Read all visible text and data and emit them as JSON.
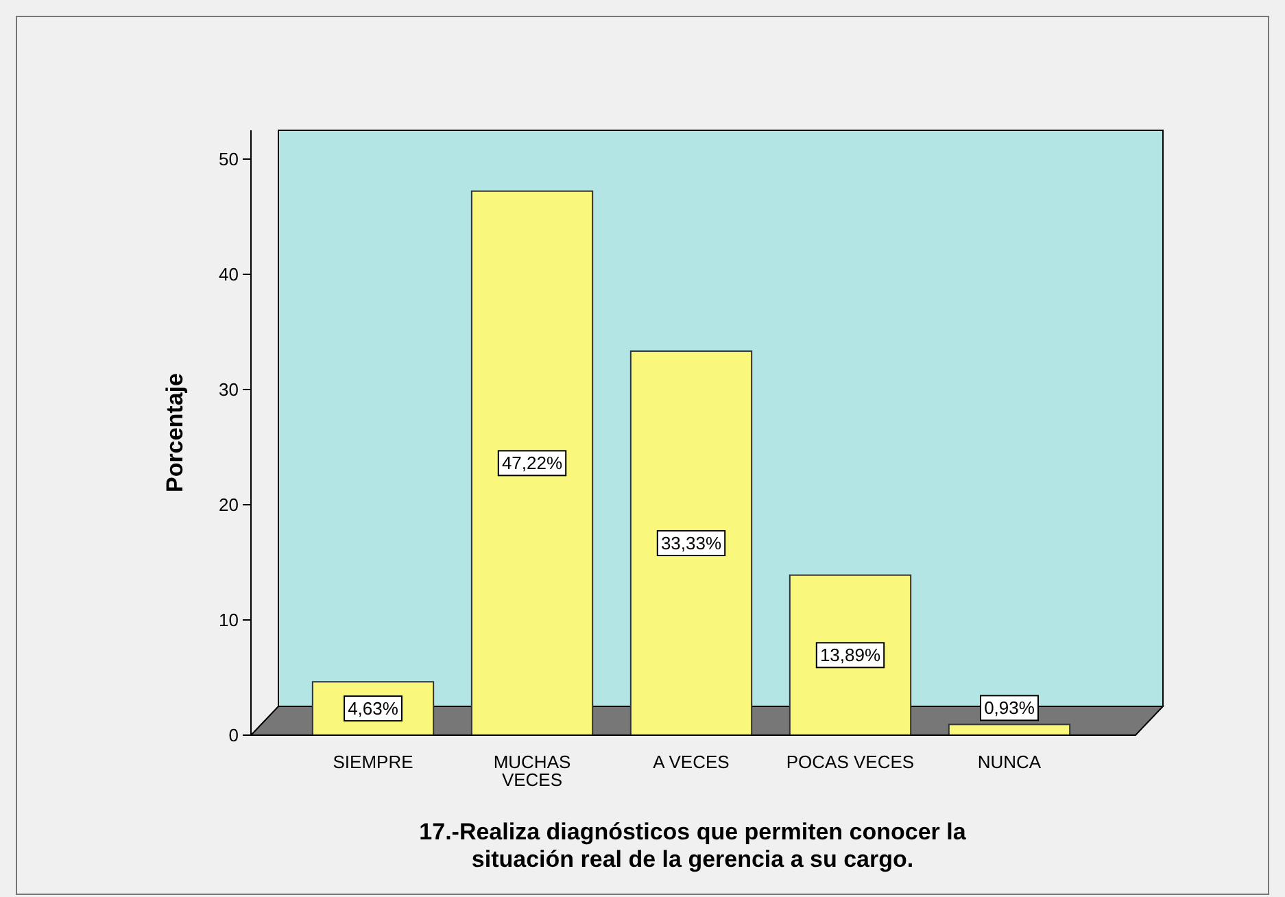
{
  "chart_data": {
    "type": "bar",
    "xlabel": "17.-Realiza diagnósticos que permiten conocer la situación real de la gerencia a su cargo.",
    "ylabel": "Porcentaje",
    "categories": [
      "SIEMPRE",
      "MUCHAS VECES",
      "A VECES",
      "POCAS VECES",
      "NUNCA"
    ],
    "values": [
      4.63,
      47.22,
      33.33,
      13.89,
      0.93
    ],
    "value_labels": [
      "4,63%",
      "47,22%",
      "33,33%",
      "13,89%",
      "0,93%"
    ],
    "color": "#f9f77c",
    "ylim": [
      0,
      52.5
    ],
    "yticks": [
      0,
      10,
      20,
      30,
      40,
      50
    ],
    "grid": false
  }
}
